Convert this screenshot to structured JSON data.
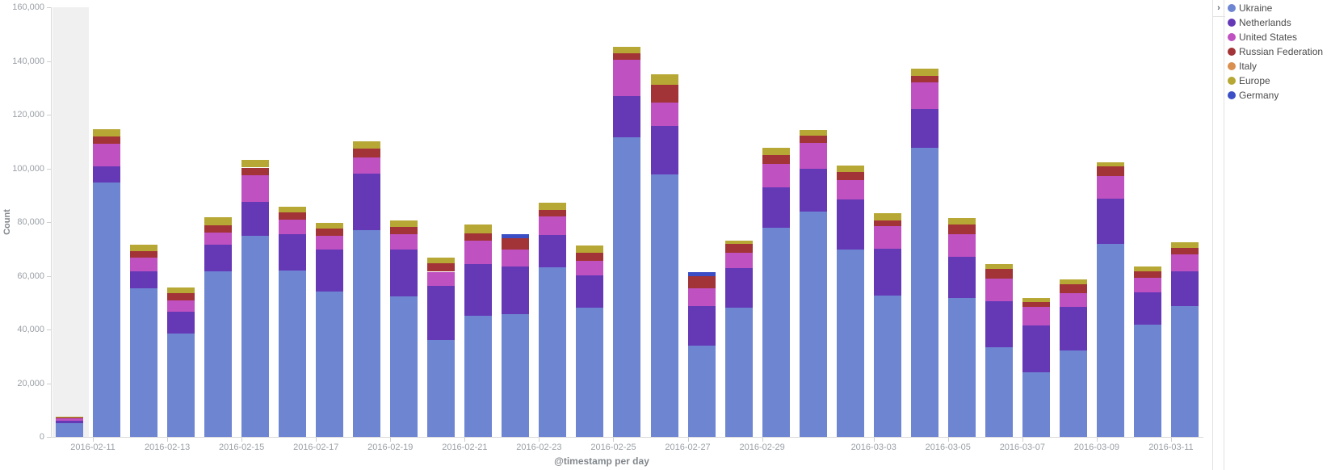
{
  "legend": {
    "collapse_icon": "›",
    "position": "top-right"
  },
  "chart_data": {
    "type": "bar",
    "stacked": true,
    "title": "",
    "xlabel": "@timestamp per day",
    "ylabel": "Count",
    "ylim": [
      0,
      160000
    ],
    "y_ticks": [
      0,
      20000,
      40000,
      60000,
      80000,
      100000,
      120000,
      140000,
      160000
    ],
    "grid": false,
    "legend_position": "right",
    "partial_first_bucket": true,
    "categories": [
      "2016-02-10",
      "2016-02-11",
      "2016-02-12",
      "2016-02-13",
      "2016-02-14",
      "2016-02-15",
      "2016-02-16",
      "2016-02-17",
      "2016-02-18",
      "2016-02-19",
      "2016-02-20",
      "2016-02-21",
      "2016-02-22",
      "2016-02-23",
      "2016-02-24",
      "2016-02-25",
      "2016-02-26",
      "2016-02-27",
      "2016-02-28",
      "2016-02-29",
      "2016-03-01",
      "2016-03-02",
      "2016-03-03",
      "2016-03-04",
      "2016-03-05",
      "2016-03-06",
      "2016-03-07",
      "2016-03-08",
      "2016-03-09",
      "2016-03-10",
      "2016-03-11"
    ],
    "x_tick_labels": [
      "2016-02-11",
      "2016-02-13",
      "2016-02-15",
      "2016-02-17",
      "2016-02-19",
      "2016-02-21",
      "2016-02-23",
      "2016-02-25",
      "2016-02-27",
      "2016-02-29",
      "2016-03-03",
      "2016-03-05",
      "2016-03-07",
      "2016-03-09",
      "2016-03-11"
    ],
    "series": [
      {
        "name": "Ukraine",
        "color": "#6e85d2",
        "values": [
          5200,
          94800,
          55200,
          38600,
          61800,
          74800,
          61900,
          54000,
          77100,
          52200,
          36100,
          45100,
          45800,
          63200,
          48000,
          111600,
          97700,
          33900,
          48200,
          77800,
          84000,
          69700,
          52500,
          107600,
          51800,
          33300,
          24200,
          32100,
          71900,
          41700,
          48600
        ]
      },
      {
        "name": "Netherlands",
        "color": "#6538b6",
        "values": [
          900,
          6100,
          6400,
          7900,
          9900,
          12600,
          13500,
          15700,
          20900,
          17500,
          20200,
          19300,
          17800,
          12100,
          12300,
          15200,
          18200,
          14900,
          14800,
          15200,
          15700,
          18700,
          17700,
          14500,
          15400,
          17200,
          17200,
          16200,
          16700,
          12100,
          13200
        ]
      },
      {
        "name": "United States",
        "color": "#bf51c1",
        "values": [
          900,
          8300,
          5100,
          4200,
          4500,
          9900,
          5500,
          5100,
          6100,
          5800,
          5200,
          8600,
          6200,
          6800,
          5400,
          13600,
          8700,
          6600,
          5500,
          8600,
          9900,
          7100,
          8300,
          10000,
          8400,
          8400,
          7100,
          5300,
          8600,
          5500,
          6200
        ]
      },
      {
        "name": "Russian Federation",
        "color": "#a23336",
        "values": [
          400,
          2800,
          2500,
          2800,
          2700,
          3000,
          2800,
          2800,
          3200,
          2700,
          3200,
          2900,
          4100,
          2500,
          3000,
          2500,
          6600,
          4500,
          3300,
          3300,
          2500,
          3200,
          2100,
          2300,
          3500,
          3800,
          1800,
          3200,
          3600,
          2300,
          2500
        ]
      },
      {
        "name": "Italy",
        "color": "#d98f4f",
        "values": [
          0,
          0,
          0,
          0,
          0,
          0,
          0,
          0,
          0,
          0,
          0,
          0,
          0,
          0,
          0,
          0,
          0,
          0,
          0,
          0,
          0,
          0,
          0,
          0,
          0,
          0,
          0,
          0,
          0,
          0,
          0
        ]
      },
      {
        "name": "Europe",
        "color": "#b7a734",
        "values": [
          200,
          2700,
          2500,
          2200,
          2800,
          3000,
          2000,
          2200,
          2800,
          2500,
          2000,
          3300,
          0,
          2700,
          2500,
          2300,
          3900,
          0,
          1200,
          2900,
          2300,
          2500,
          2700,
          2800,
          2400,
          1700,
          1500,
          1800,
          1400,
          1900,
          2000
        ]
      },
      {
        "name": "Germany",
        "color": "#3c4ec6",
        "values": [
          0,
          0,
          0,
          0,
          0,
          0,
          0,
          0,
          0,
          0,
          0,
          0,
          1500,
          0,
          0,
          0,
          0,
          1500,
          0,
          0,
          0,
          0,
          0,
          0,
          0,
          0,
          0,
          0,
          0,
          0,
          0
        ]
      }
    ]
  }
}
